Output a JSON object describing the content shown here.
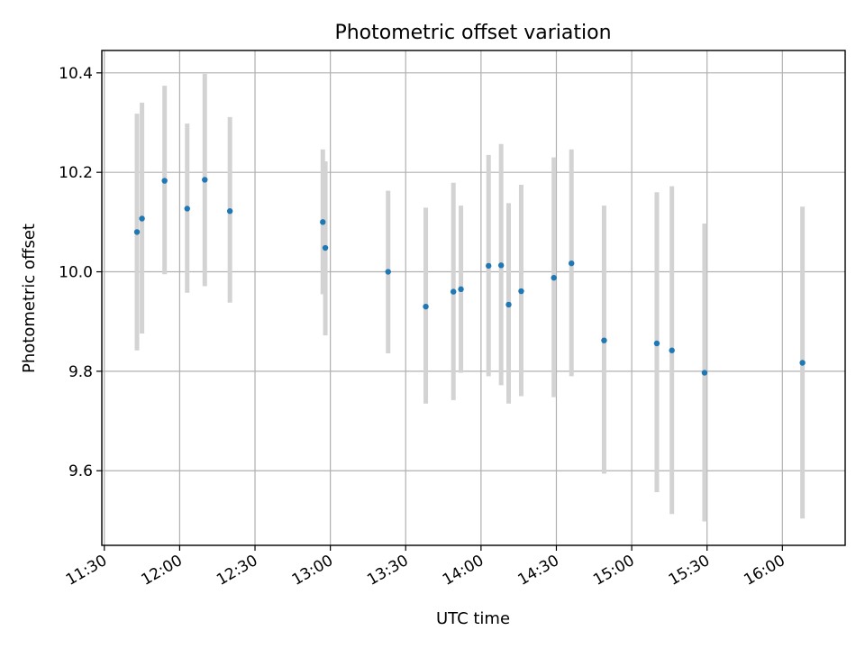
{
  "chart_data": {
    "type": "scatter",
    "title": "Photometric offset variation",
    "xlabel": "UTC time",
    "ylabel": "Photometric offset",
    "x_axis": {
      "kind": "time",
      "range": [
        "11:29",
        "16:25"
      ],
      "ticks": [
        "11:30",
        "12:00",
        "12:30",
        "13:00",
        "13:30",
        "14:00",
        "14:30",
        "15:00",
        "15:30",
        "16:00"
      ]
    },
    "y_axis": {
      "range": [
        9.45,
        10.445
      ],
      "ticks": [
        "9.6",
        "9.8",
        "10.0",
        "10.2",
        "10.4"
      ]
    },
    "grid": true,
    "series": [
      {
        "marker": "point",
        "color": "#1f77b4",
        "errorbar_color": "#d3d3d3",
        "points": [
          {
            "t": "11:43",
            "y": 10.08,
            "low": 9.842,
            "high": 10.318
          },
          {
            "t": "11:45",
            "y": 10.107,
            "low": 9.876,
            "high": 10.34
          },
          {
            "t": "11:54",
            "y": 10.183,
            "low": 9.995,
            "high": 10.374
          },
          {
            "t": "12:03",
            "y": 10.127,
            "low": 9.958,
            "high": 10.298
          },
          {
            "t": "12:10",
            "y": 10.185,
            "low": 9.971,
            "high": 10.398
          },
          {
            "t": "12:20",
            "y": 10.122,
            "low": 9.938,
            "high": 10.311
          },
          {
            "t": "12:57",
            "y": 10.1,
            "low": 9.955,
            "high": 10.246
          },
          {
            "t": "12:58",
            "y": 10.048,
            "low": 9.872,
            "high": 10.222
          },
          {
            "t": "13:23",
            "y": 10.0,
            "low": 9.836,
            "high": 10.163
          },
          {
            "t": "13:38",
            "y": 9.93,
            "low": 9.735,
            "high": 10.129
          },
          {
            "t": "13:49",
            "y": 9.96,
            "low": 9.742,
            "high": 10.179
          },
          {
            "t": "13:52",
            "y": 9.965,
            "low": 9.797,
            "high": 10.133
          },
          {
            "t": "14:03",
            "y": 10.012,
            "low": 9.79,
            "high": 10.235
          },
          {
            "t": "14:08",
            "y": 10.013,
            "low": 9.772,
            "high": 10.257
          },
          {
            "t": "14:11",
            "y": 9.934,
            "low": 9.735,
            "high": 10.138
          },
          {
            "t": "14:16",
            "y": 9.961,
            "low": 9.75,
            "high": 10.175
          },
          {
            "t": "14:29",
            "y": 9.988,
            "low": 9.748,
            "high": 10.23
          },
          {
            "t": "14:36",
            "y": 10.017,
            "low": 9.79,
            "high": 10.246
          },
          {
            "t": "14:49",
            "y": 9.862,
            "low": 9.594,
            "high": 10.133
          },
          {
            "t": "15:10",
            "y": 9.856,
            "low": 9.557,
            "high": 10.16
          },
          {
            "t": "15:16",
            "y": 9.842,
            "low": 9.513,
            "high": 10.172
          },
          {
            "t": "15:29",
            "y": 9.797,
            "low": 9.498,
            "high": 10.097
          },
          {
            "t": "16:08",
            "y": 9.817,
            "low": 9.504,
            "high": 10.131
          }
        ]
      }
    ]
  }
}
